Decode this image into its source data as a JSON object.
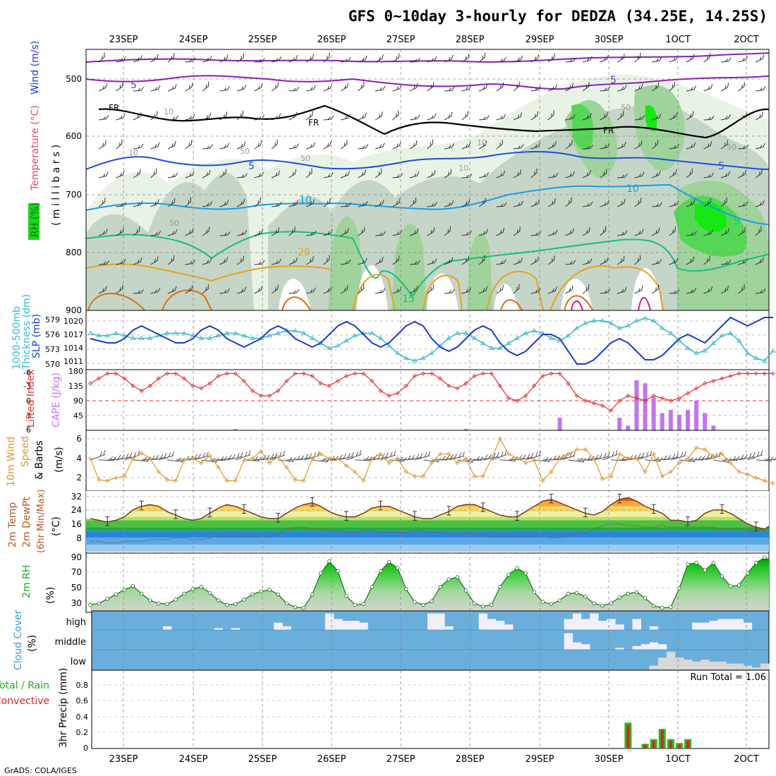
{
  "title": "GFS 0~10day 3-hourly for DEDZA (34.25E, 14.25S)",
  "credit": "GrADS: COLA/IGES",
  "dates_top": [
    "23SEP",
    "24SEP",
    "25SEP",
    "26SEP",
    "27SEP",
    "28SEP",
    "29SEP",
    "30SEP",
    "1OCT",
    "2OCT"
  ],
  "dates_bottom": [
    "23SEP",
    "24SEP",
    "25SEP",
    "26SEP",
    "27SEP",
    "28SEP",
    "29SEP",
    "30SEP",
    "1OCT",
    "2OCT"
  ],
  "colors": {
    "rh_light": "#e8f3e6",
    "rh_mid": "#c5d6c8",
    "rh_dark": "#9fd39b",
    "rh_bright": "#55d755",
    "rh_vivid": "#16e816",
    "temp_neg": "#8e1cb6",
    "temp_fr": "#000000",
    "temp_5": "#1e4fd8",
    "temp_10": "#1c9ee6",
    "temp_15": "#14c07a",
    "temp_20": "#e8a020",
    "temp_25": "#e06a14",
    "temp_30": "#e01a80",
    "slp": "#1a3ccc",
    "thickness": "#3ab8c6",
    "cape": "#c274f0",
    "li": "#e03030",
    "wind10": "#e0962a",
    "barb": "#555555",
    "cloud_bg": "#6aaedc",
    "cloud_fill": "#f0eef6",
    "cloud_low": "#d8d8d8",
    "precip_total": "#22bb22",
    "precip_conv": "#e02020"
  },
  "panels": {
    "upper": {
      "ylabel_parts": [
        "RH (%)",
        "Temperature (°C)",
        "Wind (m/s)"
      ],
      "ylabel_units": "( m i l l i b a r s )",
      "y_ticks": [
        "500",
        "600",
        "700",
        "800",
        "900"
      ],
      "contour_labels": [
        "5",
        "5",
        "5",
        "FR",
        "FR",
        "FR",
        "10",
        "10",
        "10",
        "5",
        "5",
        "10",
        "20",
        "15",
        "50",
        "50",
        "50",
        "50",
        "50",
        "10",
        "10"
      ]
    },
    "slp": {
      "ylabel_parts": [
        "1000-500mb",
        "Thickness (dm)",
        "SLP (mb)"
      ],
      "left_ticks": [
        "579",
        "576",
        "573",
        "570"
      ],
      "right_ticks": [
        "1020",
        "1017",
        "1014",
        "1011"
      ]
    },
    "cape": {
      "ylabel_parts": [
        "Lifted Index",
        "CAPE (J/kg)"
      ],
      "left_ticks": [
        "-6",
        "-3",
        "0",
        "3",
        "6"
      ],
      "right_ticks": [
        "180",
        "135",
        "90",
        "45"
      ]
    },
    "wind": {
      "ylabel_parts": [
        "10m Wind",
        "Speed",
        "& Barbs"
      ],
      "ylabel_units": "(m/s)",
      "ticks": [
        "6",
        "4",
        "2"
      ]
    },
    "temp": {
      "ylabel_parts": [
        "2m Temp",
        "2m DewPt",
        "(6hr Min/Max)"
      ],
      "ylabel_units": "(°C)",
      "ticks": [
        "32",
        "24",
        "16",
        "8"
      ]
    },
    "rh": {
      "ylabel": "2m RH",
      "ylabel_units": "(%)",
      "ticks": [
        "90",
        "70",
        "50",
        "30"
      ]
    },
    "cloud": {
      "ylabel": "Cloud Cover",
      "ylabel_units": "(%)",
      "levels": [
        "high",
        "middle",
        "low"
      ]
    },
    "precip": {
      "ylabel_parts": [
        "Total / Rain",
        "Convective"
      ],
      "ylabel_units": "3hr Precip (mm)",
      "ticks": [
        "0.8",
        "0.6",
        "0.4",
        "0.2",
        "0"
      ],
      "run_total": "Run Total = 1.06"
    }
  },
  "chart_data": [
    {
      "type": "area",
      "name": "upper-air cross section",
      "ylabel": "millibars",
      "ylim": [
        900,
        450
      ],
      "temperature_isotherms_c": [
        -5,
        0,
        5,
        10,
        15,
        20,
        25,
        30
      ],
      "rh_shading_levels_pct": [
        50,
        70,
        80,
        90,
        100
      ]
    },
    {
      "type": "line",
      "name": "SLP and thickness",
      "x_index": "3-hourly steps 0..80",
      "series": [
        {
          "name": "SLP (mb)",
          "axis": "right",
          "ylim": [
            1009,
            1022
          ],
          "values": [
            1016,
            1015.5,
            1015,
            1015,
            1016,
            1018,
            1019,
            1018,
            1017,
            1016,
            1015,
            1015,
            1016,
            1018,
            1019,
            1018,
            1016,
            1015,
            1014,
            1015,
            1016,
            1018,
            1019,
            1018,
            1016,
            1015,
            1014,
            1015,
            1017,
            1019,
            1020,
            1019,
            1017,
            1015,
            1014,
            1015,
            1017,
            1019,
            1020,
            1019,
            1016,
            1014,
            1013,
            1014,
            1016,
            1018,
            1019,
            1018,
            1015,
            1013,
            1012,
            1013,
            1015,
            1017,
            1017,
            1016,
            1013,
            1010,
            1010,
            1011,
            1013,
            1015,
            1016,
            1015,
            1013,
            1011,
            1011,
            1012,
            1014,
            1016,
            1017,
            1016,
            1015,
            1017,
            1019,
            1021,
            1020,
            1019,
            1020,
            1021,
            1021
          ]
        },
        {
          "name": "1000-500mb Thickness (dm)",
          "axis": "left",
          "ylim": [
            569,
            580
          ],
          "values": [
            576,
            575.5,
            575.5,
            576,
            575.5,
            575,
            575,
            575,
            575.5,
            576,
            576,
            576,
            575.5,
            575,
            575,
            575.5,
            576,
            576,
            575.5,
            575,
            575,
            575.5,
            576,
            576.5,
            576.5,
            576,
            575,
            574,
            573,
            573.5,
            574.5,
            575.5,
            576,
            576,
            575,
            573.5,
            572,
            571,
            570.5,
            571,
            572,
            573.5,
            575,
            576,
            576,
            575,
            574,
            573,
            573,
            574,
            575,
            576,
            576.5,
            576,
            575,
            574.5,
            575.5,
            577,
            578,
            578.5,
            578.5,
            578,
            577,
            577.5,
            578.5,
            579,
            578.5,
            577,
            576,
            574.5,
            573,
            572,
            572.5,
            574,
            575.5,
            576,
            574.5,
            572,
            571,
            570.5,
            572.5
          ]
        }
      ]
    },
    {
      "type": "bar",
      "name": "CAPE and Lifted Index",
      "series": [
        {
          "name": "CAPE (J/kg)",
          "axis": "right",
          "ylim": [
            0,
            180
          ],
          "bars": [
            [
              17,
              4
            ],
            [
              44,
              5
            ],
            [
              55,
              40
            ],
            [
              62,
              40
            ],
            [
              63,
              15
            ],
            [
              64,
              160
            ],
            [
              65,
              150
            ],
            [
              66,
              105
            ],
            [
              67,
              55
            ],
            [
              68,
              65
            ],
            [
              69,
              50
            ],
            [
              70,
              65
            ],
            [
              71,
              95
            ],
            [
              72,
              55
            ],
            [
              73,
              15
            ]
          ]
        },
        {
          "name": "Lifted Index",
          "axis": "left",
          "ylim": [
            6,
            -6
          ],
          "values": [
            3.5,
            4.5,
            5.5,
            5.5,
            4.5,
            3.0,
            2.0,
            3.0,
            4.5,
            5.5,
            5.5,
            4.5,
            3.0,
            2.5,
            3.5,
            5.0,
            5.5,
            5.5,
            4.0,
            2.0,
            1.0,
            1.0,
            2.0,
            4.0,
            5.5,
            5.5,
            5.0,
            3.5,
            3.0,
            4.0,
            5.0,
            5.5,
            5.5,
            4.0,
            2.0,
            1.0,
            1.5,
            3.0,
            5.0,
            5.5,
            5.5,
            4.5,
            3.0,
            2.5,
            3.5,
            5.0,
            5.5,
            5.5,
            3.0,
            0.5,
            0.0,
            1.0,
            3.0,
            5.0,
            5.5,
            5.5,
            3.5,
            1.0,
            0.0,
            -0.5,
            -1.0,
            -2.0,
            0.0,
            1.0,
            0.5,
            0.0,
            1.0,
            0.5,
            0.0,
            0.5,
            1.5,
            2.5,
            3.5,
            4.0,
            4.5,
            5.0,
            5.5,
            5.5,
            5.5,
            5.5,
            5.5
          ]
        }
      ]
    },
    {
      "type": "line",
      "name": "10m Wind speed",
      "ylabel": "m/s",
      "ylim": [
        0.5,
        7
      ],
      "values": [
        4.0,
        1.6,
        1.5,
        1.8,
        2.0,
        4.0,
        4.6,
        4.0,
        2.5,
        1.6,
        1.5,
        3.8,
        4.0,
        3.5,
        4.3,
        3.0,
        1.5,
        1.5,
        3.8,
        4.0,
        4.8,
        3.5,
        4.2,
        3.0,
        1.6,
        1.5,
        4.0,
        4.5,
        4.0,
        4.0,
        3.2,
        2.5,
        1.5,
        4.0,
        4.5,
        3.5,
        4.0,
        2.5,
        2.0,
        2.0,
        3.5,
        4.5,
        4.5,
        3.5,
        4.0,
        2.0,
        2.0,
        4.0,
        6.2,
        4.5,
        4.0,
        3.5,
        3.8,
        1.5,
        2.5,
        4.0,
        4.5,
        5.0,
        5.0,
        4.0,
        1.7,
        2.0,
        4.5,
        4.0,
        4.0,
        2.5,
        4.5,
        2.0,
        2.5,
        3.5,
        4.0,
        5.2,
        5.0,
        4.2,
        4.5,
        3.5,
        2.5,
        2.2,
        1.8,
        1.5,
        1.2
      ]
    },
    {
      "type": "area",
      "name": "2m Temperature and Dewpoint",
      "ylabel": "°C",
      "ylim": [
        0,
        34
      ],
      "series": [
        {
          "name": "2m Temp",
          "values": [
            19,
            18,
            17,
            18,
            20,
            24,
            26,
            27,
            26,
            23,
            21,
            19,
            18,
            19,
            22,
            25,
            27,
            26,
            24,
            22,
            20,
            19,
            19,
            22,
            25,
            27,
            28,
            26,
            23,
            21,
            20,
            20,
            22,
            25,
            26,
            26,
            24,
            22,
            20,
            19,
            19,
            21,
            23,
            26,
            27,
            27,
            25,
            23,
            21,
            20,
            20,
            23,
            26,
            29,
            30,
            28,
            26,
            24,
            22,
            21,
            23,
            27,
            30,
            31,
            29,
            26,
            24,
            22,
            18,
            18,
            17,
            18,
            22,
            24,
            24,
            22,
            19,
            16,
            14,
            13,
            16
          ]
        },
        {
          "name": "2m DewPt",
          "values": [
            6,
            6,
            5,
            5,
            6,
            6,
            6,
            7,
            7,
            7,
            8,
            8,
            7,
            7,
            8,
            9,
            9,
            9,
            9,
            9,
            9,
            9,
            10,
            13,
            14,
            14,
            13,
            13,
            12,
            12,
            11,
            11,
            12,
            12,
            11,
            11,
            11,
            11,
            12,
            12,
            11,
            11,
            10,
            10,
            10,
            10,
            10,
            9,
            9,
            9,
            9,
            9,
            9,
            9,
            8,
            8,
            9,
            10,
            11,
            13,
            15,
            16,
            16,
            15,
            15,
            14,
            14,
            15,
            14,
            14,
            14,
            14,
            14,
            14,
            13,
            13,
            13,
            12,
            12,
            12,
            12
          ]
        }
      ]
    },
    {
      "type": "area",
      "name": "2m RH",
      "ylabel": "%",
      "ylim": [
        20,
        95
      ],
      "values": [
        28,
        30,
        36,
        42,
        48,
        53,
        43,
        34,
        30,
        29,
        35,
        43,
        49,
        52,
        44,
        34,
        28,
        29,
        35,
        42,
        46,
        48,
        42,
        30,
        25,
        24,
        42,
        70,
        86,
        73,
        40,
        28,
        29,
        52,
        73,
        85,
        77,
        49,
        32,
        28,
        33,
        52,
        62,
        65,
        47,
        30,
        26,
        28,
        52,
        68,
        77,
        70,
        45,
        32,
        29,
        34,
        43,
        44,
        39,
        30,
        27,
        30,
        38,
        43,
        45,
        37,
        27,
        24,
        25,
        50,
        82,
        84,
        74,
        84,
        66,
        53,
        54,
        70,
        84,
        91,
        85,
        62
      ]
    },
    {
      "type": "area",
      "name": "Cloud Cover",
      "levels": [
        "high",
        "middle",
        "low"
      ],
      "note": "percentage bars per 3-hourly step"
    },
    {
      "type": "bar",
      "name": "3hr Precip",
      "ylabel": "mm",
      "ylim": [
        0,
        1.0
      ],
      "run_total": 1.06,
      "series": [
        {
          "name": "Total / Rain",
          "bars": [
            [
              63,
              0.33
            ],
            [
              65,
              0.06
            ],
            [
              66,
              0.12
            ],
            [
              67,
              0.25
            ],
            [
              68,
              0.12
            ],
            [
              69,
              0.07
            ],
            [
              70,
              0.12
            ]
          ]
        },
        {
          "name": "Convective",
          "bars": [
            [
              63,
              0.3
            ],
            [
              65,
              0.05
            ],
            [
              66,
              0.1
            ],
            [
              67,
              0.24
            ],
            [
              68,
              0.1
            ],
            [
              69,
              0.05
            ],
            [
              70,
              0.1
            ]
          ]
        }
      ]
    }
  ]
}
